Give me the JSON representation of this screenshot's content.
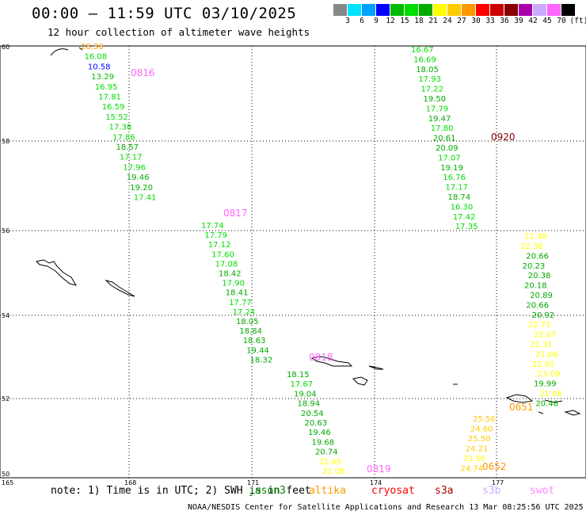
{
  "title": "00:00 – 11:59 UTC 03/10/2025",
  "subtitle": "12 hour collection of altimeter wave heights",
  "scale": {
    "unit": "(ft)",
    "colors": [
      "#888888",
      "#00e5ff",
      "#00a0ff",
      "#0000ff",
      "#00bb00",
      "#00dd00",
      "#00aa00",
      "#ffff00",
      "#ffcc00",
      "#ff9900",
      "#ff0000",
      "#cc0000",
      "#880000",
      "#aa00aa",
      "#ccaaff",
      "#ff66ff",
      "#000000"
    ],
    "labels": [
      "3",
      "6",
      "9",
      "12",
      "15",
      "18",
      "21",
      "24",
      "27",
      "30",
      "33",
      "36",
      "39",
      "42",
      "45",
      "70"
    ]
  },
  "axes": {
    "lat_ticks": [
      "60",
      "58",
      "56",
      "54",
      "52",
      "50"
    ],
    "lon_ticks": [
      "165",
      "168",
      "171",
      "174",
      "177"
    ]
  },
  "chart_data": {
    "type": "scatter",
    "title": "00:00 – 11:59 UTC 03/10/2025",
    "subtitle": "12 hour collection of altimeter wave heights",
    "units": "ft",
    "tracks": [
      {
        "name": "0816",
        "values": [
          "28.36",
          "16.08",
          "10.58",
          "13.29",
          "16.95",
          "17.81",
          "16.59",
          "15.52",
          "17.38",
          "17.86",
          "18.57",
          "17.17",
          "17.96",
          "19.46",
          "19.20",
          "17.41"
        ]
      },
      {
        "name": "0817",
        "values": [
          "17.74",
          "17.79",
          "17.12",
          "17.60",
          "17.08",
          "18.42",
          "17.90",
          "18.41",
          "17.77",
          "17.24",
          "18.05",
          "18.84",
          "18.63",
          "19.44",
          "18.32"
        ]
      },
      {
        "name": "0818",
        "values": [
          "18.15",
          "17.67",
          "19.04",
          "18.94",
          "20.54",
          "20.63",
          "19.46",
          "19.68",
          "20.74",
          "21.45",
          "21.08"
        ]
      },
      {
        "name": "0920",
        "values": [
          "16.67",
          "16.69",
          "18.05",
          "17.93",
          "17.22",
          "19.50",
          "17.79",
          "19.47",
          "17.80",
          "20.61",
          "20.09",
          "17.07",
          "19.19",
          "16.76",
          "17.17",
          "18.74",
          "16.30",
          "17.42",
          "17.35",
          "21.48",
          "22.36",
          "20.66",
          "20.23",
          "20.38",
          "20.18",
          "20.89",
          "20.66",
          "20.92",
          "22.71",
          "22.67",
          "21.31",
          "21.06",
          "22.91",
          "23.09",
          "19.99",
          "21.06",
          "20.48"
        ]
      },
      {
        "name": "0652",
        "values": [
          "25.56",
          "24.60",
          "25.50",
          "24.21",
          "23.56",
          "24.74"
        ]
      }
    ],
    "pass_labels": [
      "0816",
      "0817",
      "0818",
      "0819",
      "0920",
      "0651",
      "0652"
    ]
  },
  "note": "note: 1) Time is in UTC; 2) SWH is in feet",
  "legend": {
    "items": [
      {
        "label": "jason3",
        "color": "#008800"
      },
      {
        "label": "altika",
        "color": "#ff9900"
      },
      {
        "label": "cryosat",
        "color": "#ff0000"
      },
      {
        "label": "s3a",
        "color": "#aa0000"
      },
      {
        "label": "s3b",
        "color": "#ccaaff"
      },
      {
        "label": "swot",
        "color": "#ff88ff"
      }
    ]
  },
  "credit": "NOAA/NESDIS Center for Satellite Applications and Research   13 Mar 08:25:56 UTC 2025"
}
